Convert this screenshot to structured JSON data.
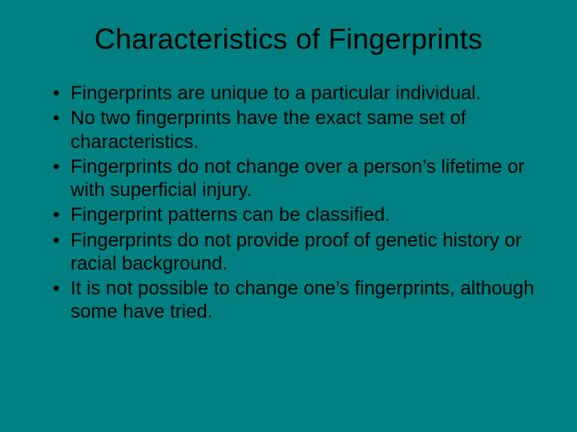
{
  "slide": {
    "title": "Characteristics of Fingerprints",
    "bullets": [
      "Fingerprints are unique to a particular individual.",
      "No two fingerprints have the exact same set of characteristics.",
      "Fingerprints do not change over a person’s lifetime or with superficial injury.",
      "Fingerprint patterns can be classified.",
      "Fingerprints do not provide proof of genetic history or racial background.",
      "It is not possible to change one’s fingerprints, although some have tried."
    ],
    "styling": {
      "background_color": "#008080",
      "text_color": "#000000",
      "title_fontsize": 36,
      "body_fontsize": 24,
      "title_weight": 400,
      "font_family": "Arial"
    }
  }
}
